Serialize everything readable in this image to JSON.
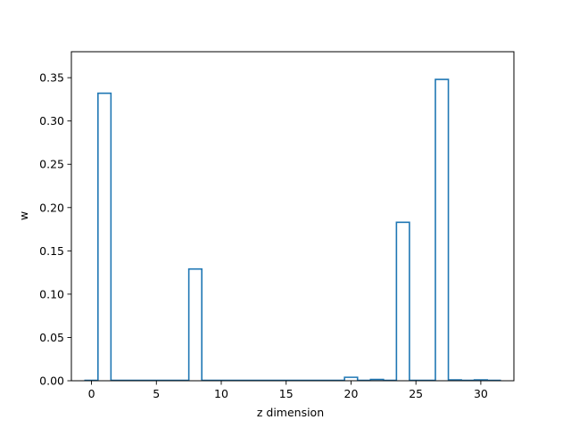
{
  "chart_data": {
    "type": "bar",
    "style": "step-outline",
    "xlabel": "z dimension",
    "ylabel": "w",
    "xlim": [
      -1.55,
      32.55
    ],
    "ylim": [
      0,
      0.38
    ],
    "xticks": [
      0,
      5,
      10,
      15,
      20,
      25,
      30
    ],
    "yticks": [
      0.0,
      0.05,
      0.1,
      0.15,
      0.2,
      0.25,
      0.3,
      0.35
    ],
    "grid": false,
    "line_color": "#1f77b4",
    "x": [
      0,
      1,
      2,
      3,
      4,
      5,
      6,
      7,
      8,
      9,
      10,
      11,
      12,
      13,
      14,
      15,
      16,
      17,
      18,
      19,
      20,
      21,
      22,
      23,
      24,
      25,
      26,
      27,
      28,
      29,
      30,
      31
    ],
    "values": [
      0.0005,
      0.332,
      0.0005,
      0.0005,
      0.0005,
      0.0005,
      0.0005,
      0.0005,
      0.129,
      0.0005,
      0.0005,
      0.0005,
      0.0005,
      0.0005,
      0.0005,
      0.0005,
      0.0005,
      0.0005,
      0.0005,
      0.0005,
      0.004,
      0.0005,
      0.0015,
      0.0005,
      0.183,
      0.0005,
      0.0005,
      0.348,
      0.001,
      0.0005,
      0.001,
      0.0005
    ]
  }
}
